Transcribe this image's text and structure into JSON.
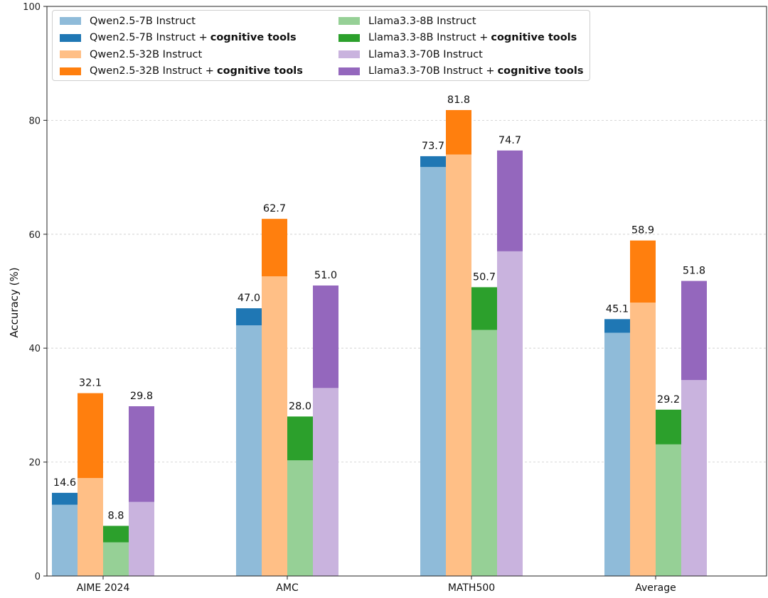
{
  "chart_data": {
    "type": "bar",
    "stacked_increment": true,
    "title": "",
    "xlabel": "",
    "ylabel": "Accuracy (%)",
    "ylim": [
      0,
      100
    ],
    "yticks": [
      "0",
      "20",
      "40",
      "60",
      "80",
      "100"
    ],
    "grid": true,
    "legend_position": "top-left",
    "categories": [
      "AIME 2024",
      "AMC",
      "MATH500",
      "Average"
    ],
    "series": [
      {
        "name": "Qwen2.5-7B Instruct",
        "base_color": "#8fbbd9",
        "tool_color": "#1f77b4",
        "base": [
          12.5,
          44.0,
          71.8,
          42.7
        ],
        "total": [
          14.6,
          47.0,
          73.7,
          45.1
        ],
        "labels": [
          "14.6",
          "47.0",
          "73.7",
          "45.1"
        ]
      },
      {
        "name": "Qwen2.5-32B Instruct",
        "base_color": "#ffbf86",
        "tool_color": "#ff7f0e",
        "base": [
          17.2,
          52.6,
          74.0,
          48.0
        ],
        "total": [
          32.1,
          62.7,
          81.8,
          58.9
        ],
        "labels": [
          "32.1",
          "62.7",
          "81.8",
          "58.9"
        ]
      },
      {
        "name": "Llama3.3-8B Instruct",
        "base_color": "#96d096",
        "tool_color": "#2ca02c",
        "base": [
          5.9,
          20.3,
          43.2,
          23.1
        ],
        "total": [
          8.8,
          28.0,
          50.7,
          29.2
        ],
        "labels": [
          "8.8",
          "28.0",
          "50.7",
          "29.2"
        ]
      },
      {
        "name": "Llama3.3-70B Instruct",
        "base_color": "#c9b3de",
        "tool_color": "#9467bd",
        "base": [
          13.0,
          33.0,
          57.0,
          34.4
        ],
        "total": [
          29.8,
          51.0,
          74.7,
          51.8
        ],
        "labels": [
          "29.8",
          "51.0",
          "74.7",
          "51.8"
        ]
      }
    ],
    "legend": [
      {
        "label": "Qwen2.5-7B Instruct",
        "bold": "",
        "color": "#8fbbd9"
      },
      {
        "label": "Llama3.3-8B Instruct",
        "bold": "",
        "color": "#96d096"
      },
      {
        "label": "Qwen2.5-7B Instruct +",
        "bold": "cognitive tools",
        "color": "#1f77b4"
      },
      {
        "label": "Llama3.3-8B Instruct +",
        "bold": "cognitive tools",
        "color": "#2ca02c"
      },
      {
        "label": "Qwen2.5-32B Instruct",
        "bold": "",
        "color": "#ffbf86"
      },
      {
        "label": "Llama3.3-70B Instruct",
        "bold": "",
        "color": "#c9b3de"
      },
      {
        "label": "Qwen2.5-32B Instruct +",
        "bold": "cognitive tools",
        "color": "#ff7f0e"
      },
      {
        "label": "Llama3.3-70B Instruct +",
        "bold": "cognitive tools",
        "color": "#9467bd"
      }
    ]
  }
}
